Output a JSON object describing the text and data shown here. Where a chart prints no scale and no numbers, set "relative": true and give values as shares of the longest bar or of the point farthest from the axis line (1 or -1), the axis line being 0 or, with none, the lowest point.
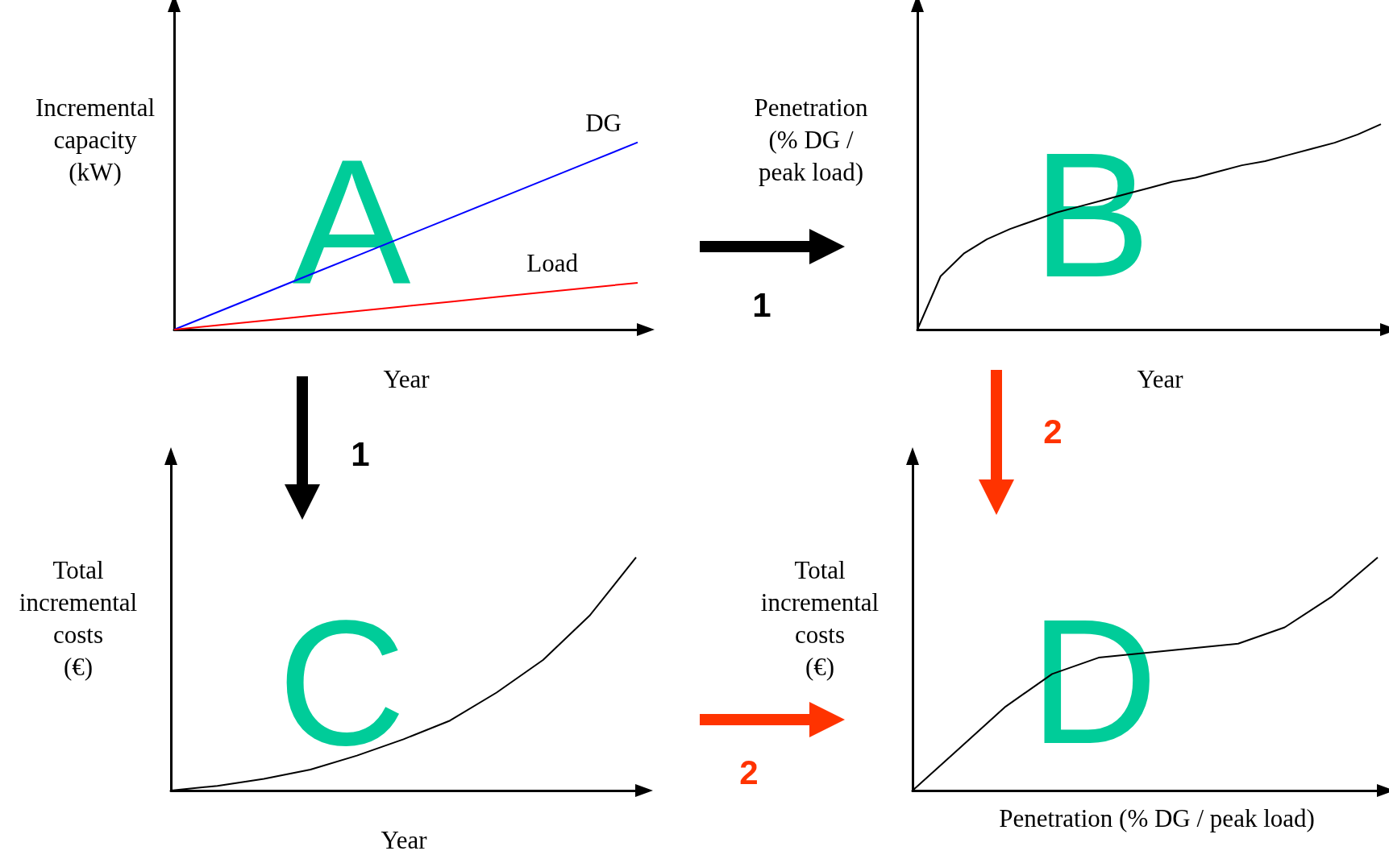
{
  "chart_data": [
    {
      "type": "line",
      "relative": true,
      "xlabel": "Year",
      "ylabel": "Incremental\ncapacity\n(kW)",
      "categories": [
        null,
        null,
        null,
        null,
        null,
        null,
        null,
        null,
        null,
        null,
        null
      ],
      "annotations": [
        "A",
        "1",
        "1"
      ],
      "series": [
        {
          "name": "DG",
          "color": "#0000ff",
          "values": [
            0,
            0.1,
            0.2,
            0.3,
            0.4,
            0.5,
            0.6,
            0.7,
            0.8,
            0.9,
            1
          ]
        },
        {
          "name": "Load",
          "color": "#ff0000",
          "values": [
            0,
            0.025,
            0.05,
            0.075,
            0.1,
            0.125,
            0.15,
            0.175,
            0.2,
            0.225,
            0.25
          ]
        }
      ]
    },
    {
      "type": "line",
      "relative": true,
      "xlabel": "Year",
      "ylabel": "Penetration\n(% DG /\npeak load)",
      "categories": [
        null,
        null,
        null,
        null,
        null,
        null,
        null,
        null,
        null,
        null,
        null,
        null,
        null,
        null,
        null,
        null,
        null,
        null,
        null,
        null,
        null
      ],
      "annotations": [
        "B",
        "2"
      ],
      "series": [
        {
          "color": "#000000",
          "values": [
            0,
            0.26,
            0.37,
            0.44,
            0.49,
            0.53,
            0.57,
            0.6,
            0.63,
            0.66,
            0.69,
            0.72,
            0.74,
            0.77,
            0.8,
            0.82,
            0.85,
            0.88,
            0.91,
            0.95,
            1
          ]
        }
      ]
    },
    {
      "type": "line",
      "relative": true,
      "xlabel": "Year",
      "ylabel": "Total\nincremental\ncosts\n(€)",
      "categories": [
        null,
        null,
        null,
        null,
        null,
        null,
        null,
        null,
        null,
        null,
        null
      ],
      "annotations": [
        "C",
        "2"
      ],
      "series": [
        {
          "color": "#000000",
          "values": [
            0,
            0.02,
            0.05,
            0.09,
            0.15,
            0.22,
            0.3,
            0.42,
            0.56,
            0.75,
            1
          ]
        }
      ]
    },
    {
      "type": "line",
      "relative": true,
      "xlabel": "Penetration (% DG / peak load)",
      "ylabel": "Total\nincremental\ncosts\n(€)",
      "categories": [
        null,
        null,
        null,
        null,
        null,
        null,
        null,
        null,
        null,
        null,
        null
      ],
      "annotations": [
        "D"
      ],
      "series": [
        {
          "color": "#000000",
          "values": [
            0,
            0.18,
            0.36,
            0.5,
            0.57,
            0.59,
            0.61,
            0.63,
            0.7,
            0.83,
            1
          ]
        }
      ]
    }
  ]
}
